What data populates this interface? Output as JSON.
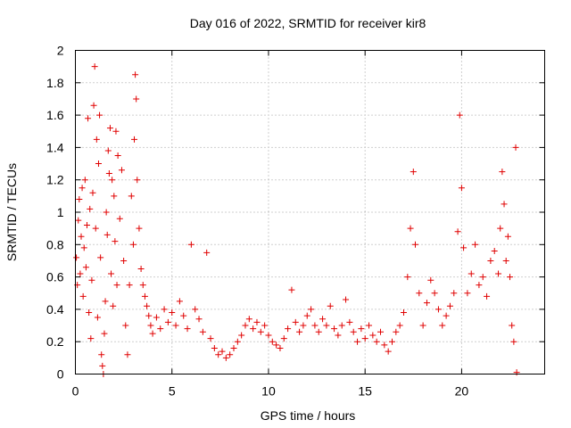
{
  "chart_data": {
    "type": "scatter",
    "title": "Day 016 of 2022, SRMTID for receiver kir8",
    "xlabel": "GPS time / hours",
    "ylabel": "SRMTID / TECUs",
    "xlim": [
      0,
      24.3
    ],
    "ylim": [
      0,
      2
    ],
    "xticks": [
      0,
      5,
      10,
      15,
      20
    ],
    "xtick_labels": [
      "0",
      "5",
      "10",
      "15",
      "20"
    ],
    "yticks": [
      0,
      0.2,
      0.4,
      0.6,
      0.8,
      1.0,
      1.2,
      1.4,
      1.6,
      1.8,
      2.0
    ],
    "ytick_labels": [
      "0",
      "0.2",
      "0.4",
      "0.6",
      "0.8",
      "1",
      "1.2",
      "1.4",
      "1.6",
      "1.8",
      "2"
    ],
    "grid": true,
    "marker": "+",
    "color": "#e00000",
    "series": [
      {
        "name": "SRMTID",
        "points": [
          [
            0.05,
            0.72
          ],
          [
            0.1,
            0.55
          ],
          [
            0.15,
            0.95
          ],
          [
            0.2,
            1.08
          ],
          [
            0.25,
            0.62
          ],
          [
            0.3,
            0.85
          ],
          [
            0.35,
            1.15
          ],
          [
            0.4,
            0.48
          ],
          [
            0.45,
            0.78
          ],
          [
            0.5,
            1.2
          ],
          [
            0.55,
            0.66
          ],
          [
            0.6,
            0.92
          ],
          [
            0.65,
            1.58
          ],
          [
            0.7,
            0.38
          ],
          [
            0.75,
            1.02
          ],
          [
            0.8,
            0.22
          ],
          [
            0.85,
            0.58
          ],
          [
            0.9,
            1.12
          ],
          [
            0.95,
            1.66
          ],
          [
            1.0,
            1.9
          ],
          [
            1.05,
            0.9
          ],
          [
            1.1,
            1.45
          ],
          [
            1.15,
            0.35
          ],
          [
            1.2,
            1.3
          ],
          [
            1.25,
            1.6
          ],
          [
            1.3,
            0.72
          ],
          [
            1.35,
            0.12
          ],
          [
            1.4,
            0.05
          ],
          [
            1.45,
            0.0
          ],
          [
            1.5,
            0.25
          ],
          [
            1.55,
            0.45
          ],
          [
            1.6,
            1.0
          ],
          [
            1.65,
            0.86
          ],
          [
            1.7,
            1.38
          ],
          [
            1.75,
            1.24
          ],
          [
            1.8,
            1.52
          ],
          [
            1.85,
            0.62
          ],
          [
            1.9,
            1.2
          ],
          [
            1.95,
            0.42
          ],
          [
            2.0,
            1.1
          ],
          [
            2.05,
            0.82
          ],
          [
            2.1,
            1.5
          ],
          [
            2.15,
            0.55
          ],
          [
            2.2,
            1.35
          ],
          [
            2.3,
            0.96
          ],
          [
            2.4,
            1.26
          ],
          [
            2.5,
            0.7
          ],
          [
            2.6,
            0.3
          ],
          [
            2.7,
            0.12
          ],
          [
            2.8,
            0.55
          ],
          [
            2.9,
            1.1
          ],
          [
            3.0,
            0.8
          ],
          [
            3.05,
            1.45
          ],
          [
            3.1,
            1.85
          ],
          [
            3.15,
            1.7
          ],
          [
            3.2,
            1.2
          ],
          [
            3.3,
            0.9
          ],
          [
            3.4,
            0.65
          ],
          [
            3.5,
            0.55
          ],
          [
            3.6,
            0.48
          ],
          [
            3.7,
            0.42
          ],
          [
            3.8,
            0.36
          ],
          [
            3.9,
            0.3
          ],
          [
            4.0,
            0.25
          ],
          [
            4.2,
            0.35
          ],
          [
            4.4,
            0.28
          ],
          [
            4.6,
            0.4
          ],
          [
            4.8,
            0.32
          ],
          [
            5.0,
            0.38
          ],
          [
            5.2,
            0.3
          ],
          [
            5.4,
            0.45
          ],
          [
            5.6,
            0.36
          ],
          [
            5.8,
            0.28
          ],
          [
            6.0,
            0.8
          ],
          [
            6.2,
            0.4
          ],
          [
            6.4,
            0.34
          ],
          [
            6.6,
            0.26
          ],
          [
            6.8,
            0.75
          ],
          [
            7.0,
            0.22
          ],
          [
            7.2,
            0.16
          ],
          [
            7.4,
            0.12
          ],
          [
            7.6,
            0.14
          ],
          [
            7.8,
            0.1
          ],
          [
            8.0,
            0.12
          ],
          [
            8.2,
            0.16
          ],
          [
            8.4,
            0.2
          ],
          [
            8.6,
            0.24
          ],
          [
            8.8,
            0.3
          ],
          [
            9.0,
            0.34
          ],
          [
            9.2,
            0.28
          ],
          [
            9.4,
            0.32
          ],
          [
            9.6,
            0.26
          ],
          [
            9.8,
            0.3
          ],
          [
            10.0,
            0.24
          ],
          [
            10.2,
            0.2
          ],
          [
            10.4,
            0.18
          ],
          [
            10.6,
            0.16
          ],
          [
            10.8,
            0.22
          ],
          [
            11.0,
            0.28
          ],
          [
            11.2,
            0.52
          ],
          [
            11.4,
            0.32
          ],
          [
            11.6,
            0.26
          ],
          [
            11.8,
            0.3
          ],
          [
            12.0,
            0.36
          ],
          [
            12.2,
            0.4
          ],
          [
            12.4,
            0.3
          ],
          [
            12.6,
            0.26
          ],
          [
            12.8,
            0.34
          ],
          [
            13.0,
            0.3
          ],
          [
            13.2,
            0.42
          ],
          [
            13.4,
            0.28
          ],
          [
            13.6,
            0.24
          ],
          [
            13.8,
            0.3
          ],
          [
            14.0,
            0.46
          ],
          [
            14.2,
            0.32
          ],
          [
            14.4,
            0.26
          ],
          [
            14.6,
            0.2
          ],
          [
            14.8,
            0.28
          ],
          [
            15.0,
            0.22
          ],
          [
            15.2,
            0.3
          ],
          [
            15.4,
            0.24
          ],
          [
            15.6,
            0.2
          ],
          [
            15.8,
            0.26
          ],
          [
            16.0,
            0.18
          ],
          [
            16.2,
            0.14
          ],
          [
            16.4,
            0.2
          ],
          [
            16.6,
            0.26
          ],
          [
            16.8,
            0.3
          ],
          [
            17.0,
            0.38
          ],
          [
            17.2,
            0.6
          ],
          [
            17.35,
            0.9
          ],
          [
            17.5,
            1.25
          ],
          [
            17.6,
            0.8
          ],
          [
            17.8,
            0.5
          ],
          [
            18.0,
            0.3
          ],
          [
            18.2,
            0.44
          ],
          [
            18.4,
            0.58
          ],
          [
            18.6,
            0.5
          ],
          [
            18.8,
            0.4
          ],
          [
            19.0,
            0.3
          ],
          [
            19.2,
            0.36
          ],
          [
            19.4,
            0.42
          ],
          [
            19.6,
            0.5
          ],
          [
            19.8,
            0.88
          ],
          [
            19.9,
            1.6
          ],
          [
            20.0,
            1.15
          ],
          [
            20.1,
            0.78
          ],
          [
            20.3,
            0.5
          ],
          [
            20.5,
            0.62
          ],
          [
            20.7,
            0.8
          ],
          [
            20.9,
            0.55
          ],
          [
            21.1,
            0.6
          ],
          [
            21.3,
            0.48
          ],
          [
            21.5,
            0.7
          ],
          [
            21.7,
            0.76
          ],
          [
            21.9,
            0.62
          ],
          [
            22.0,
            0.9
          ],
          [
            22.1,
            1.25
          ],
          [
            22.2,
            1.05
          ],
          [
            22.3,
            0.7
          ],
          [
            22.4,
            0.85
          ],
          [
            22.5,
            0.6
          ],
          [
            22.6,
            0.3
          ],
          [
            22.7,
            0.2
          ],
          [
            22.8,
            1.4
          ],
          [
            22.85,
            0.01
          ]
        ]
      }
    ]
  }
}
